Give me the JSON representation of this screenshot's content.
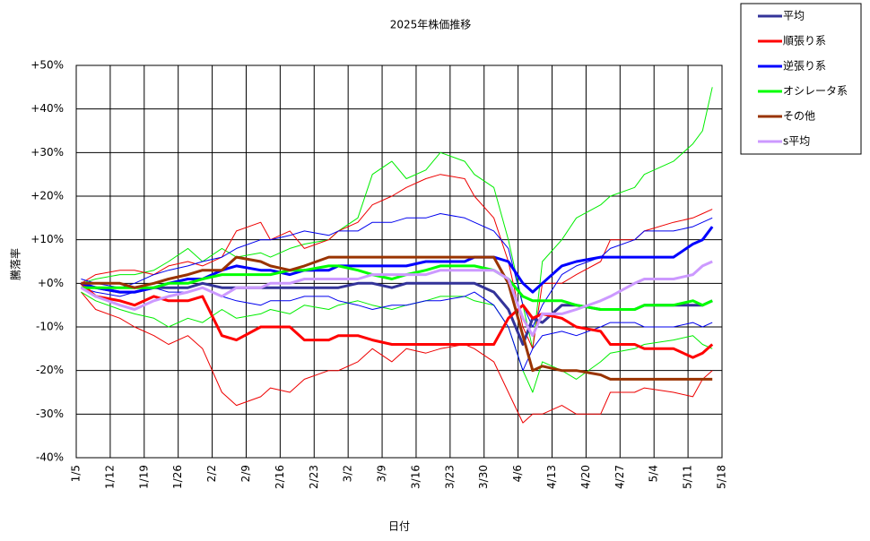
{
  "chart_data": {
    "type": "line",
    "title": "2025年株価推移",
    "x_label": "日付",
    "y_label": "騰落率",
    "x": [
      "1/6",
      "1/9",
      "1/14",
      "1/17",
      "1/21",
      "1/24",
      "1/28",
      "1/31",
      "2/4",
      "2/7",
      "2/12",
      "2/14",
      "2/18",
      "2/21",
      "2/26",
      "2/28",
      "3/4",
      "3/7",
      "3/11",
      "3/14",
      "3/18",
      "3/21",
      "3/26",
      "3/28",
      "4/1",
      "4/4",
      "4/7",
      "4/9",
      "4/11",
      "4/15",
      "4/18",
      "4/23",
      "4/25",
      "4/30",
      "5/2",
      "5/8",
      "5/12",
      "5/14",
      "5/16"
    ],
    "xlim": [
      "1/5",
      "5/18"
    ],
    "xticks": [
      "1/5",
      "1/12",
      "1/19",
      "1/26",
      "2/2",
      "2/9",
      "2/16",
      "2/23",
      "3/2",
      "3/9",
      "3/16",
      "3/23",
      "3/30",
      "4/6",
      "4/13",
      "4/20",
      "4/27",
      "5/4",
      "5/11",
      "5/18"
    ],
    "ylim": [
      -40,
      50
    ],
    "yticks": [
      {
        "value": -40,
        "label": "-40%"
      },
      {
        "value": -30,
        "label": "-30%"
      },
      {
        "value": -20,
        "label": "-20%"
      },
      {
        "value": -10,
        "label": "-10%"
      },
      {
        "value": 0,
        "label": "+0%"
      },
      {
        "value": 10,
        "label": "+10%"
      },
      {
        "value": 20,
        "label": "+20%"
      },
      {
        "value": 30,
        "label": "+30%"
      },
      {
        "value": 40,
        "label": "+40%"
      },
      {
        "value": 50,
        "label": "+50%"
      }
    ],
    "grid": true,
    "series": [
      {
        "color": "#00ee00",
        "width": 1,
        "values": [
          0,
          1,
          2,
          2,
          3,
          5,
          8,
          5,
          8,
          6,
          7,
          6,
          8,
          9,
          10,
          12,
          15,
          25,
          28,
          24,
          26,
          30,
          28,
          25,
          22,
          10,
          -5,
          -15,
          5,
          10,
          15,
          18,
          20,
          22,
          25,
          28,
          32,
          35,
          45
        ]
      },
      {
        "color": "#ee0000",
        "width": 1,
        "values": [
          0,
          2,
          3,
          3,
          2,
          4,
          5,
          4,
          6,
          12,
          14,
          10,
          12,
          8,
          10,
          12,
          14,
          18,
          20,
          22,
          24,
          25,
          24,
          20,
          15,
          5,
          -10,
          -15,
          0,
          0,
          2,
          5,
          10,
          10,
          12,
          14,
          15,
          16,
          17
        ]
      },
      {
        "color": "#ee0000",
        "width": 1,
        "values": [
          -2,
          -6,
          -8,
          -10,
          -12,
          -14,
          -12,
          -15,
          -25,
          -28,
          -26,
          -24,
          -25,
          -22,
          -20,
          -20,
          -18,
          -15,
          -18,
          -15,
          -16,
          -15,
          -14,
          -15,
          -18,
          -25,
          -32,
          -30,
          -30,
          -28,
          -30,
          -30,
          -25,
          -25,
          -24,
          -25,
          -26,
          -22,
          -20
        ]
      },
      {
        "color": "#0000ee",
        "width": 1,
        "values": [
          1,
          0,
          -1,
          0,
          2,
          3,
          4,
          5,
          6,
          8,
          10,
          10,
          11,
          12,
          11,
          12,
          12,
          14,
          14,
          15,
          15,
          16,
          15,
          14,
          12,
          8,
          -5,
          -10,
          -5,
          2,
          4,
          6,
          8,
          10,
          12,
          12,
          13,
          14,
          15
        ]
      },
      {
        "color": "#00ee00",
        "width": 1,
        "values": [
          -2,
          -4,
          -6,
          -7,
          -8,
          -10,
          -8,
          -9,
          -6,
          -8,
          -7,
          -6,
          -7,
          -5,
          -6,
          -5,
          -4,
          -5,
          -6,
          -5,
          -4,
          -3,
          -3,
          -4,
          -5,
          -10,
          -20,
          -25,
          -18,
          -20,
          -22,
          -18,
          -16,
          -15,
          -14,
          -13,
          -12,
          -14,
          -15
        ]
      },
      {
        "color": "#0000ee",
        "width": 1,
        "values": [
          -1,
          -2,
          -3,
          -2,
          -1,
          -2,
          -2,
          -1,
          -3,
          -4,
          -5,
          -4,
          -4,
          -3,
          -3,
          -4,
          -5,
          -6,
          -5,
          -5,
          -4,
          -4,
          -3,
          -2,
          -5,
          -10,
          -20,
          -15,
          -12,
          -11,
          -12,
          -10,
          -9,
          -9,
          -10,
          -10,
          -9,
          -10,
          -9
        ]
      },
      {
        "name": "平均",
        "color": "#333399",
        "width": 3,
        "values": [
          0,
          -1,
          -2,
          -2,
          -1,
          -1,
          -1,
          0,
          -1,
          -1,
          -1,
          -1,
          -1,
          -1,
          -1,
          -1,
          0,
          0,
          -1,
          0,
          0,
          0,
          0,
          0,
          -2,
          -6,
          -14,
          -8,
          -9,
          -5,
          -5,
          -6,
          -6,
          -6,
          -5,
          -5,
          -5,
          -5,
          -4
        ]
      },
      {
        "name": "順張り系",
        "color": "#ff0000",
        "width": 3,
        "values": [
          0,
          -3,
          -4,
          -5,
          -3,
          -4,
          -4,
          -3,
          -12,
          -13,
          -10,
          -10,
          -10,
          -13,
          -13,
          -12,
          -12,
          -13,
          -14,
          -14,
          -14,
          -14,
          -14,
          -14,
          -14,
          -8,
          -5,
          -8,
          -7,
          -8,
          -10,
          -11,
          -14,
          -14,
          -15,
          -15,
          -17,
          -16,
          -14
        ]
      },
      {
        "name": "逆張り系",
        "color": "#0000ff",
        "width": 3,
        "values": [
          0,
          -1,
          -2,
          -2,
          -1,
          0,
          1,
          1,
          3,
          4,
          3,
          3,
          2,
          3,
          3,
          4,
          4,
          4,
          4,
          4,
          5,
          5,
          5,
          6,
          6,
          5,
          0,
          -2,
          0,
          4,
          5,
          6,
          6,
          6,
          6,
          6,
          9,
          10,
          13
        ]
      },
      {
        "name": "オシレータ系",
        "color": "#00ff00",
        "width": 3,
        "values": [
          -1,
          -1,
          -1,
          -1,
          -1,
          0,
          0,
          1,
          2,
          2,
          2,
          2,
          3,
          3,
          4,
          4,
          3,
          2,
          1,
          2,
          3,
          4,
          4,
          4,
          3,
          1,
          -3,
          -4,
          -4,
          -4,
          -5,
          -6,
          -6,
          -6,
          -5,
          -5,
          -4,
          -5,
          -4
        ]
      },
      {
        "name": "その他",
        "color": "#993300",
        "width": 3,
        "values": [
          0,
          0,
          0,
          -1,
          0,
          1,
          2,
          3,
          3,
          6,
          5,
          4,
          3,
          4,
          6,
          6,
          6,
          6,
          6,
          6,
          6,
          6,
          6,
          6,
          6,
          0,
          -12,
          -20,
          -19,
          -20,
          -20,
          -21,
          -22,
          -22,
          -22,
          -22,
          -22,
          -22,
          -22
        ]
      },
      {
        "name": "s平均",
        "color": "#cc99ff",
        "width": 3,
        "values": [
          -1,
          -3,
          -5,
          -6,
          -4,
          -3,
          -2,
          -1,
          -3,
          -1,
          -1,
          0,
          0,
          1,
          1,
          1,
          1,
          2,
          2,
          2,
          2,
          3,
          3,
          3,
          3,
          1,
          -8,
          -12,
          -7,
          -7,
          -6,
          -4,
          -3,
          0,
          1,
          1,
          2,
          4,
          5
        ]
      }
    ]
  }
}
